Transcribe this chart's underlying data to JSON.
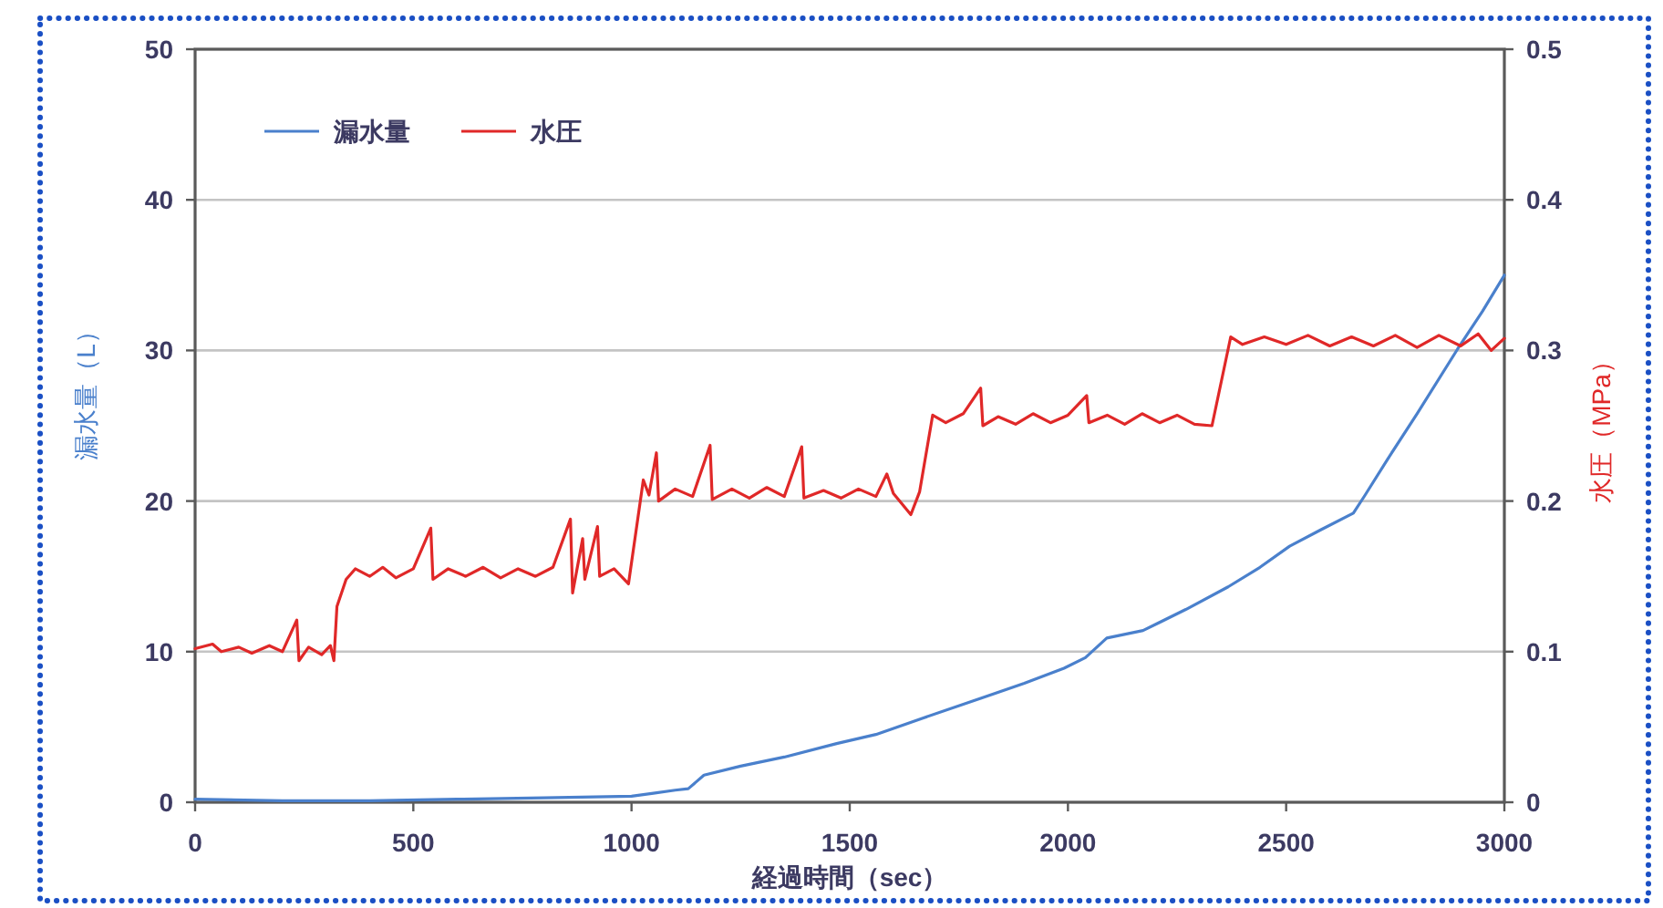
{
  "chart_data": {
    "type": "line",
    "xlabel": "経過時間（sec）",
    "ylabel": "漏水量（L）",
    "y2label": "水圧（MPa）",
    "xlim": [
      0,
      3000
    ],
    "xticks": [
      0,
      500,
      1000,
      1500,
      2000,
      2500,
      3000
    ],
    "ylim": [
      0,
      50
    ],
    "yticks": [
      0,
      10,
      20,
      30,
      40,
      50
    ],
    "y2lim": [
      0,
      0.5
    ],
    "y2ticks": [
      0,
      0.1,
      0.2,
      0.3,
      0.4,
      0.5
    ],
    "grid": "y",
    "legend": "top left",
    "marker": "none",
    "line_style": "solid",
    "series": [
      {
        "name": "漏水量",
        "color": "#4a80cc",
        "x": [
          0,
          200,
          400,
          600,
          800,
          1000,
          1050,
          1100,
          1130,
          1166,
          1250,
          1350,
          1470,
          1560,
          1669,
          1800,
          1900,
          1991,
          2040,
          2089,
          2172,
          2270,
          2367,
          2440,
          2508,
          2580,
          2654,
          2681,
          2733,
          2800,
          2893,
          2950,
          3000
        ],
        "values": [
          0.2,
          0.1,
          0.1,
          0.2,
          0.3,
          0.4,
          0.6,
          0.8,
          0.9,
          1.8,
          2.4,
          3.0,
          3.9,
          4.5,
          5.6,
          6.9,
          7.9,
          8.9,
          9.6,
          10.9,
          11.4,
          12.8,
          14.3,
          15.6,
          17.0,
          18.1,
          19.2,
          20.4,
          22.8,
          25.8,
          30.1,
          32.6,
          35.0
        ]
      },
      {
        "name": "水圧",
        "color": "#e02828",
        "axis": "y2",
        "x": [
          0,
          40,
          60,
          100,
          130,
          170,
          200,
          233,
          238,
          260,
          290,
          310,
          318,
          325,
          346,
          367,
          400,
          430,
          460,
          500,
          540,
          545,
          580,
          620,
          660,
          700,
          740,
          780,
          820,
          860,
          865,
          888,
          893,
          922,
          927,
          960,
          993,
          1027,
          1040,
          1057,
          1062,
          1100,
          1140,
          1180,
          1185,
          1230,
          1270,
          1310,
          1350,
          1390,
          1395,
          1440,
          1480,
          1520,
          1560,
          1585,
          1600,
          1640,
          1660,
          1690,
          1720,
          1760,
          1800,
          1805,
          1840,
          1880,
          1920,
          1960,
          2000,
          2043,
          2048,
          2090,
          2130,
          2170,
          2210,
          2250,
          2290,
          2330,
          2373,
          2400,
          2450,
          2500,
          2550,
          2600,
          2650,
          2700,
          2750,
          2800,
          2850,
          2900,
          2940,
          2970,
          3000
        ],
        "values": [
          0.102,
          0.105,
          0.1,
          0.103,
          0.099,
          0.104,
          0.1,
          0.121,
          0.094,
          0.103,
          0.098,
          0.104,
          0.094,
          0.13,
          0.148,
          0.155,
          0.15,
          0.156,
          0.149,
          0.155,
          0.182,
          0.148,
          0.155,
          0.15,
          0.156,
          0.149,
          0.155,
          0.15,
          0.156,
          0.188,
          0.139,
          0.175,
          0.148,
          0.183,
          0.15,
          0.155,
          0.145,
          0.214,
          0.204,
          0.232,
          0.2,
          0.208,
          0.203,
          0.237,
          0.201,
          0.208,
          0.202,
          0.209,
          0.203,
          0.236,
          0.202,
          0.207,
          0.202,
          0.208,
          0.203,
          0.218,
          0.205,
          0.191,
          0.206,
          0.257,
          0.252,
          0.258,
          0.275,
          0.25,
          0.256,
          0.251,
          0.258,
          0.252,
          0.257,
          0.27,
          0.252,
          0.257,
          0.251,
          0.258,
          0.252,
          0.257,
          0.251,
          0.25,
          0.309,
          0.304,
          0.309,
          0.304,
          0.31,
          0.303,
          0.309,
          0.303,
          0.31,
          0.302,
          0.31,
          0.303,
          0.311,
          0.3,
          0.308
        ]
      }
    ]
  }
}
